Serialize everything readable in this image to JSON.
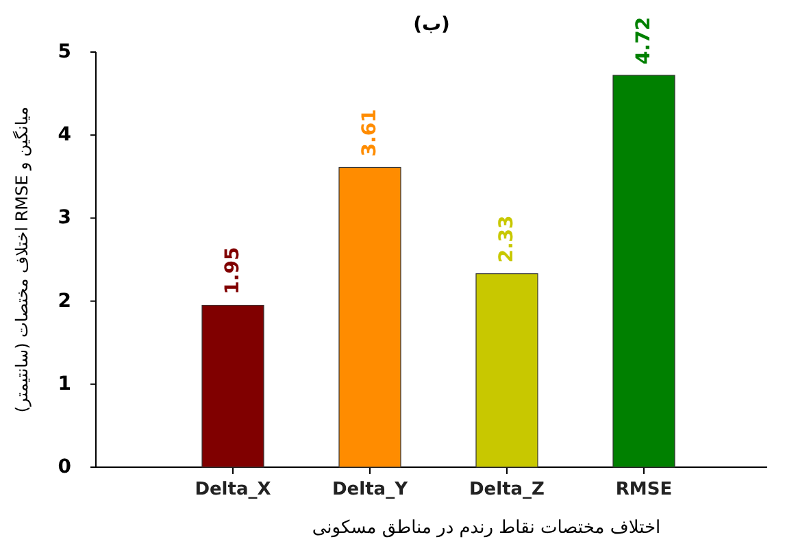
{
  "chart_data": {
    "type": "bar",
    "title": "(ب)",
    "xlabel": "اختلاف مختصات نقاط رندم در مناطق مسکونی",
    "ylabel": "میانگین و RMSE اختلاف مختصات (سانتیمتر)",
    "categories": [
      "Delta_X",
      "Delta_Y",
      "Delta_Z",
      "RMSE"
    ],
    "values": [
      1.95,
      3.61,
      2.33,
      4.72
    ],
    "colors": [
      "#800000",
      "#ff8c00",
      "#c8c800",
      "#008000"
    ],
    "ylim": [
      0,
      5
    ],
    "yticks": [
      0,
      1,
      2,
      3,
      4,
      5
    ],
    "data_labels": true
  }
}
